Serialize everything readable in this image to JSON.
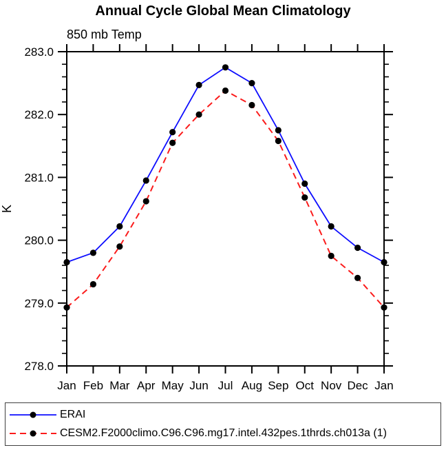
{
  "chart": {
    "title": "Annual Cycle Global Mean Climatology",
    "subtitle": "850 mb Temp"
  },
  "chart_data": {
    "type": "line",
    "title": "Annual Cycle Global Mean Climatology",
    "subtitle": "850 mb Temp",
    "xlabel": "",
    "ylabel": "K",
    "x_categories": [
      "Jan",
      "Feb",
      "Mar",
      "Apr",
      "May",
      "Jun",
      "Jul",
      "Aug",
      "Sep",
      "Oct",
      "Nov",
      "Dec",
      "Jan"
    ],
    "ylim": [
      278.0,
      283.0
    ],
    "ytick_interval": 1.0,
    "yminor_interval": 0.2,
    "ytick_decimals": 1,
    "grid": false,
    "legend_position": "bottom",
    "marker": "filled-circle",
    "marker_color": "#000000",
    "axis_color": "#000000",
    "series": [
      {
        "name": "ERAI",
        "color": "#0d0dff",
        "line_style": "solid",
        "values": [
          279.65,
          279.8,
          280.22,
          280.95,
          281.72,
          282.47,
          282.75,
          282.5,
          281.75,
          280.9,
          280.22,
          279.88,
          279.65
        ]
      },
      {
        "name": "CESM2.F2000climo.C96.C96.mg17.intel.432pes.1thrds.ch013a (1)",
        "color": "#fb1b1b",
        "line_style": "dashed",
        "values": [
          278.93,
          279.3,
          279.9,
          280.62,
          281.55,
          282.0,
          282.38,
          282.15,
          281.58,
          280.68,
          279.75,
          279.4,
          278.93
        ]
      }
    ]
  }
}
